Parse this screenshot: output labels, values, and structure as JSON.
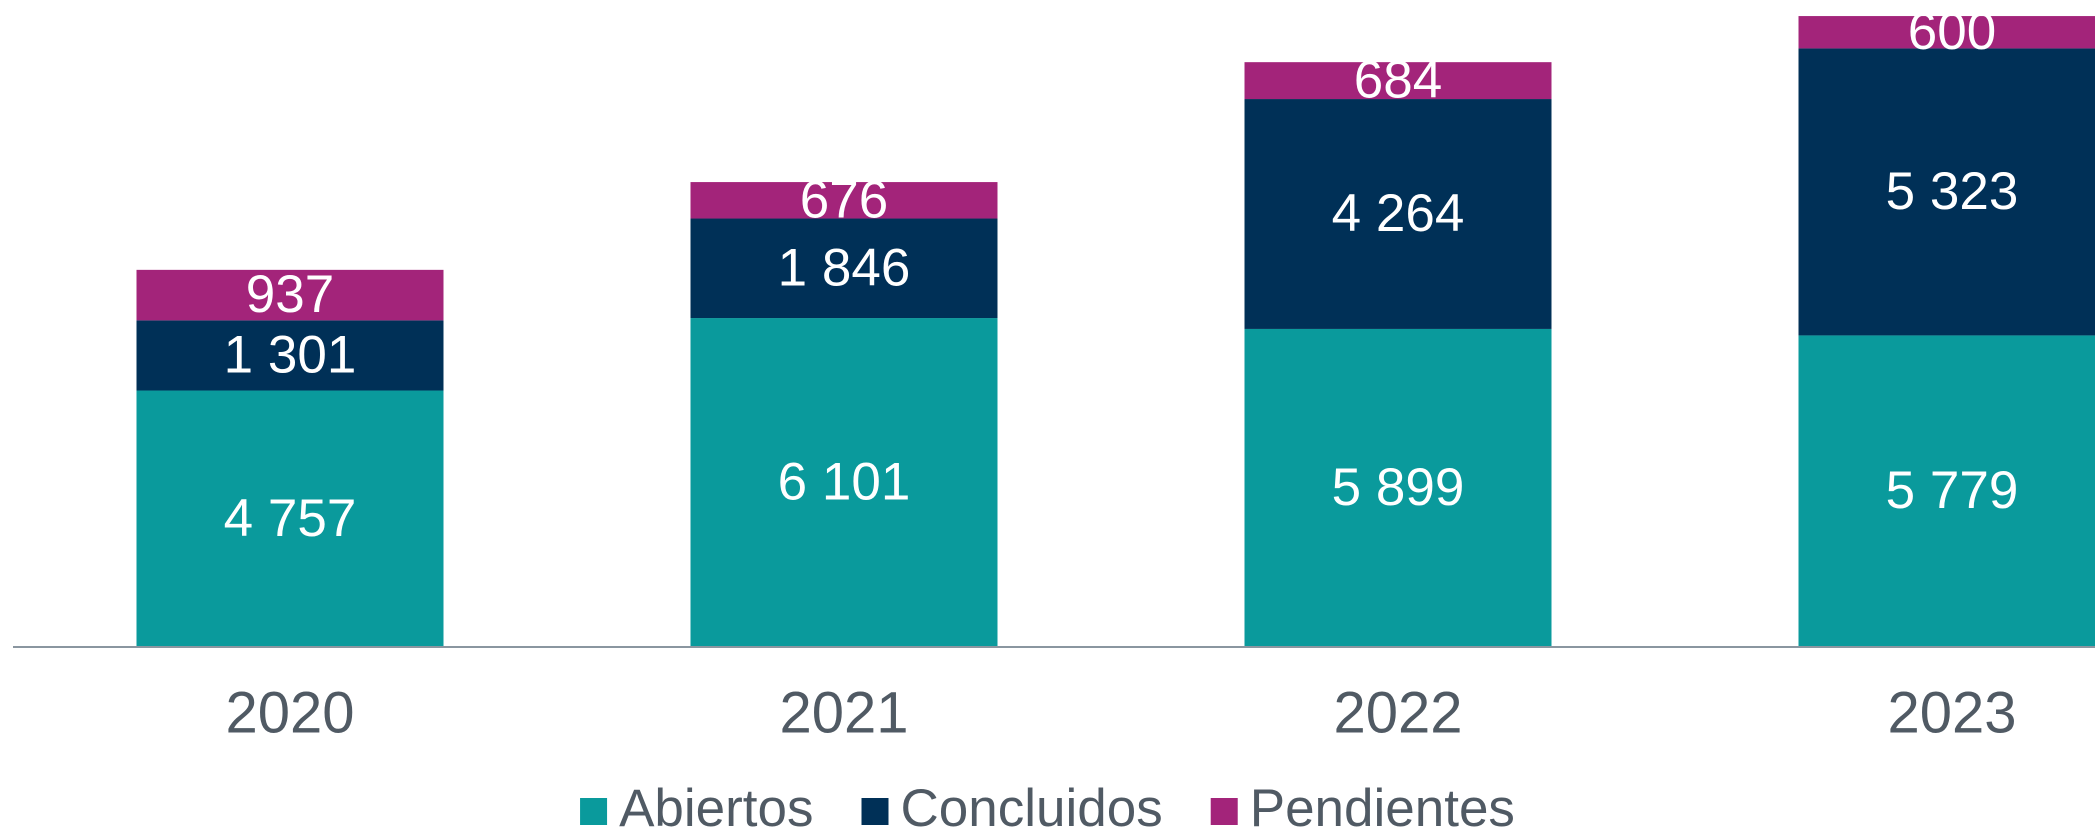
{
  "chart_data": {
    "type": "stacked_bar",
    "categories": [
      "2020",
      "2021",
      "2022",
      "2023"
    ],
    "series": [
      {
        "name": "Abiertos",
        "color": "#0a9a9c",
        "values": [
          4757,
          6101,
          5899,
          5779
        ],
        "value_labels": [
          "4 757",
          "6 101",
          "5 899",
          "5 779"
        ]
      },
      {
        "name": "Concluidos",
        "color": "#003057",
        "values": [
          1301,
          1846,
          4264,
          5323
        ],
        "value_labels": [
          "1 301",
          "1 846",
          "4 264",
          "5 323"
        ]
      },
      {
        "name": "Pendientes",
        "color": "#a3247a",
        "values": [
          937,
          676,
          684,
          600
        ],
        "value_labels": [
          "937",
          "676",
          "684",
          "600"
        ]
      }
    ],
    "ylim": [
      0,
      12000
    ],
    "legend": "bottom"
  }
}
